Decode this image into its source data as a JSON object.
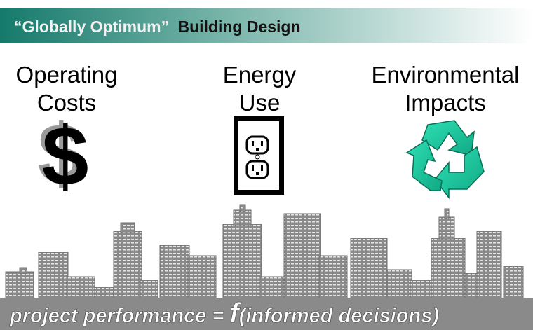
{
  "header": {
    "title": [
      "“Globally Optimum”",
      "Building Design"
    ]
  },
  "columns": [
    {
      "lines": [
        "Operating",
        "Costs"
      ]
    },
    {
      "lines": [
        "Energy",
        "Use"
      ]
    },
    {
      "lines": [
        "Environmental",
        "Impacts"
      ]
    }
  ],
  "footer": {
    "parts": [
      "project performance = ",
      "f",
      "(informed decisions)"
    ]
  }
}
